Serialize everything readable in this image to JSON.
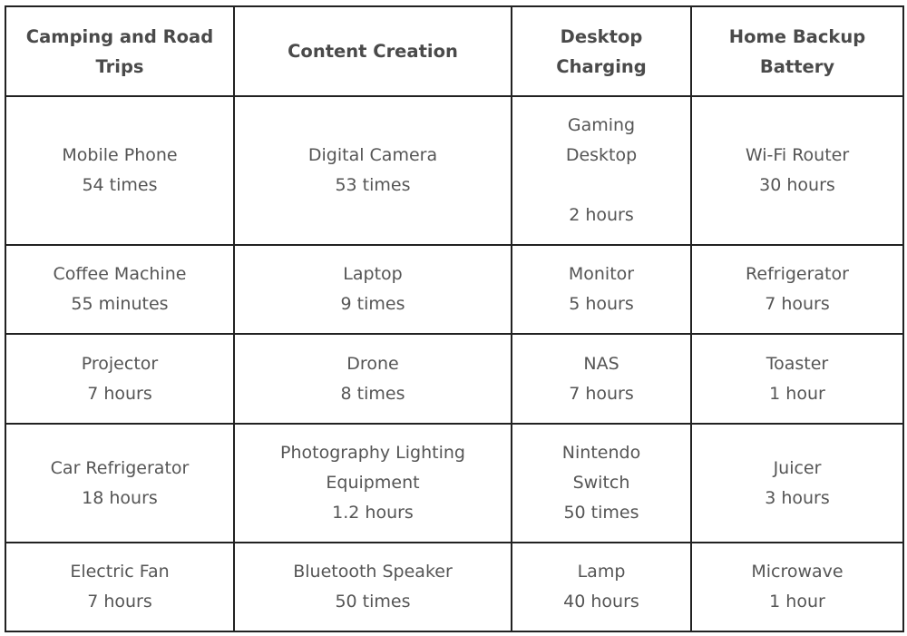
{
  "headers": [
    [
      "Camping and Road",
      "Trips"
    ],
    [
      "Content Creation"
    ],
    [
      "Desktop",
      "Charging"
    ],
    [
      "Home Backup",
      "Battery"
    ]
  ],
  "rows": [
    [
      [
        "Mobile Phone",
        "54 times"
      ],
      [
        "Digital Camera",
        "53 times"
      ],
      [
        "Gaming",
        "Desktop",
        "",
        "2 hours"
      ],
      [
        "Wi-Fi Router",
        "30 hours"
      ]
    ],
    [
      [
        "Coffee Machine",
        "55 minutes"
      ],
      [
        "Laptop",
        "9 times"
      ],
      [
        "Monitor",
        "5 hours"
      ],
      [
        "Refrigerator",
        "7 hours"
      ]
    ],
    [
      [
        "Projector",
        "7 hours"
      ],
      [
        "Drone",
        "8 times"
      ],
      [
        "NAS",
        "7 hours"
      ],
      [
        "Toaster",
        "1 hour"
      ]
    ],
    [
      [
        "Car Refrigerator",
        "18 hours"
      ],
      [
        "Photography Lighting",
        "Equipment",
        "1.2 hours"
      ],
      [
        "Nintendo",
        "Switch",
        "50 times"
      ],
      [
        "Juicer",
        "3 hours"
      ]
    ],
    [
      [
        "Electric Fan",
        "7 hours"
      ],
      [
        "Bluetooth Speaker",
        "50 times"
      ],
      [
        "Lamp",
        "40 hours"
      ],
      [
        "Microwave",
        "1 hour"
      ]
    ]
  ]
}
